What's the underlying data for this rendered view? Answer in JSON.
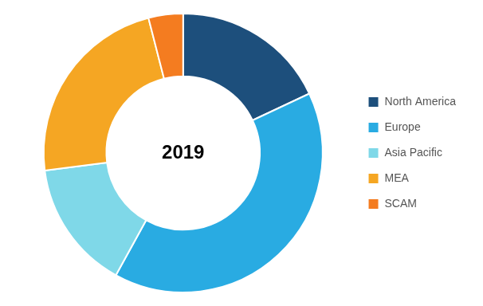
{
  "chart_data": {
    "type": "donut",
    "categories": [
      "North America",
      "Europe",
      "Asia Pacific",
      "MEA",
      "SCAM"
    ],
    "values": [
      18,
      40,
      15,
      23,
      4
    ],
    "colors": [
      "#1d4f7c",
      "#29abe2",
      "#7fd8e8",
      "#f5a623",
      "#f47c20"
    ],
    "annotations": [
      "2019"
    ],
    "legend": "right"
  }
}
